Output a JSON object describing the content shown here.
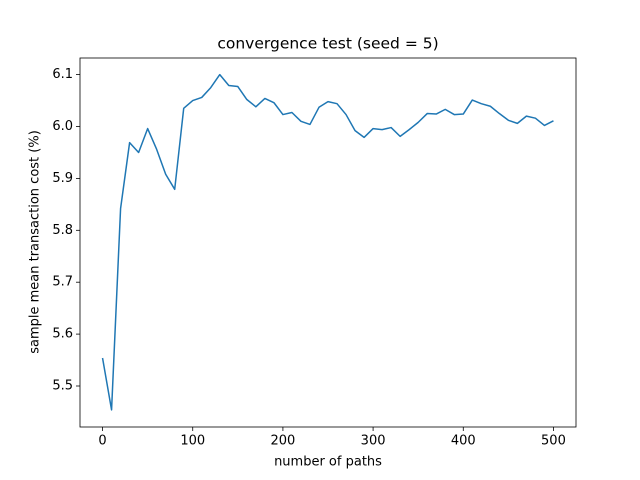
{
  "chart_data": {
    "type": "line",
    "title": "convergence test (seed = 5)",
    "x_label": "number of paths",
    "y_label": "sample mean transaction cost (%)",
    "x": [
      0,
      10,
      20,
      30,
      40,
      50,
      60,
      70,
      80,
      90,
      100,
      110,
      120,
      130,
      140,
      150,
      160,
      170,
      180,
      190,
      200,
      210,
      220,
      230,
      240,
      250,
      260,
      270,
      280,
      290,
      300,
      310,
      320,
      330,
      340,
      350,
      360,
      370,
      380,
      390,
      400,
      410,
      420,
      430,
      440,
      450,
      460,
      470,
      480,
      490,
      500
    ],
    "series": [
      {
        "name": "sample mean",
        "color": "#1f77b4",
        "values": [
          5.554,
          5.454,
          5.842,
          5.969,
          5.95,
          5.996,
          5.956,
          5.908,
          5.879,
          6.035,
          6.05,
          6.056,
          6.075,
          6.1,
          6.079,
          6.077,
          6.052,
          6.038,
          6.054,
          6.046,
          6.023,
          6.027,
          6.01,
          6.004,
          6.037,
          6.048,
          6.044,
          6.023,
          5.992,
          5.979,
          5.996,
          5.994,
          5.998,
          5.981,
          5.994,
          6.008,
          6.025,
          6.024,
          6.033,
          6.023,
          6.024,
          6.051,
          6.044,
          6.039,
          6.025,
          6.012,
          6.006,
          6.02,
          6.016,
          6.002,
          6.011
        ]
      }
    ],
    "xlim": [
      -25,
      525
    ],
    "xticks": [
      0,
      100,
      200,
      300,
      400,
      500
    ],
    "ylim": [
      5.421,
      6.132
    ],
    "yticks": [
      5.5,
      5.6,
      5.7,
      5.8,
      5.9,
      {
        "value": 6,
        "label": "6.0"
      },
      6.1
    ],
    "grid": false
  }
}
